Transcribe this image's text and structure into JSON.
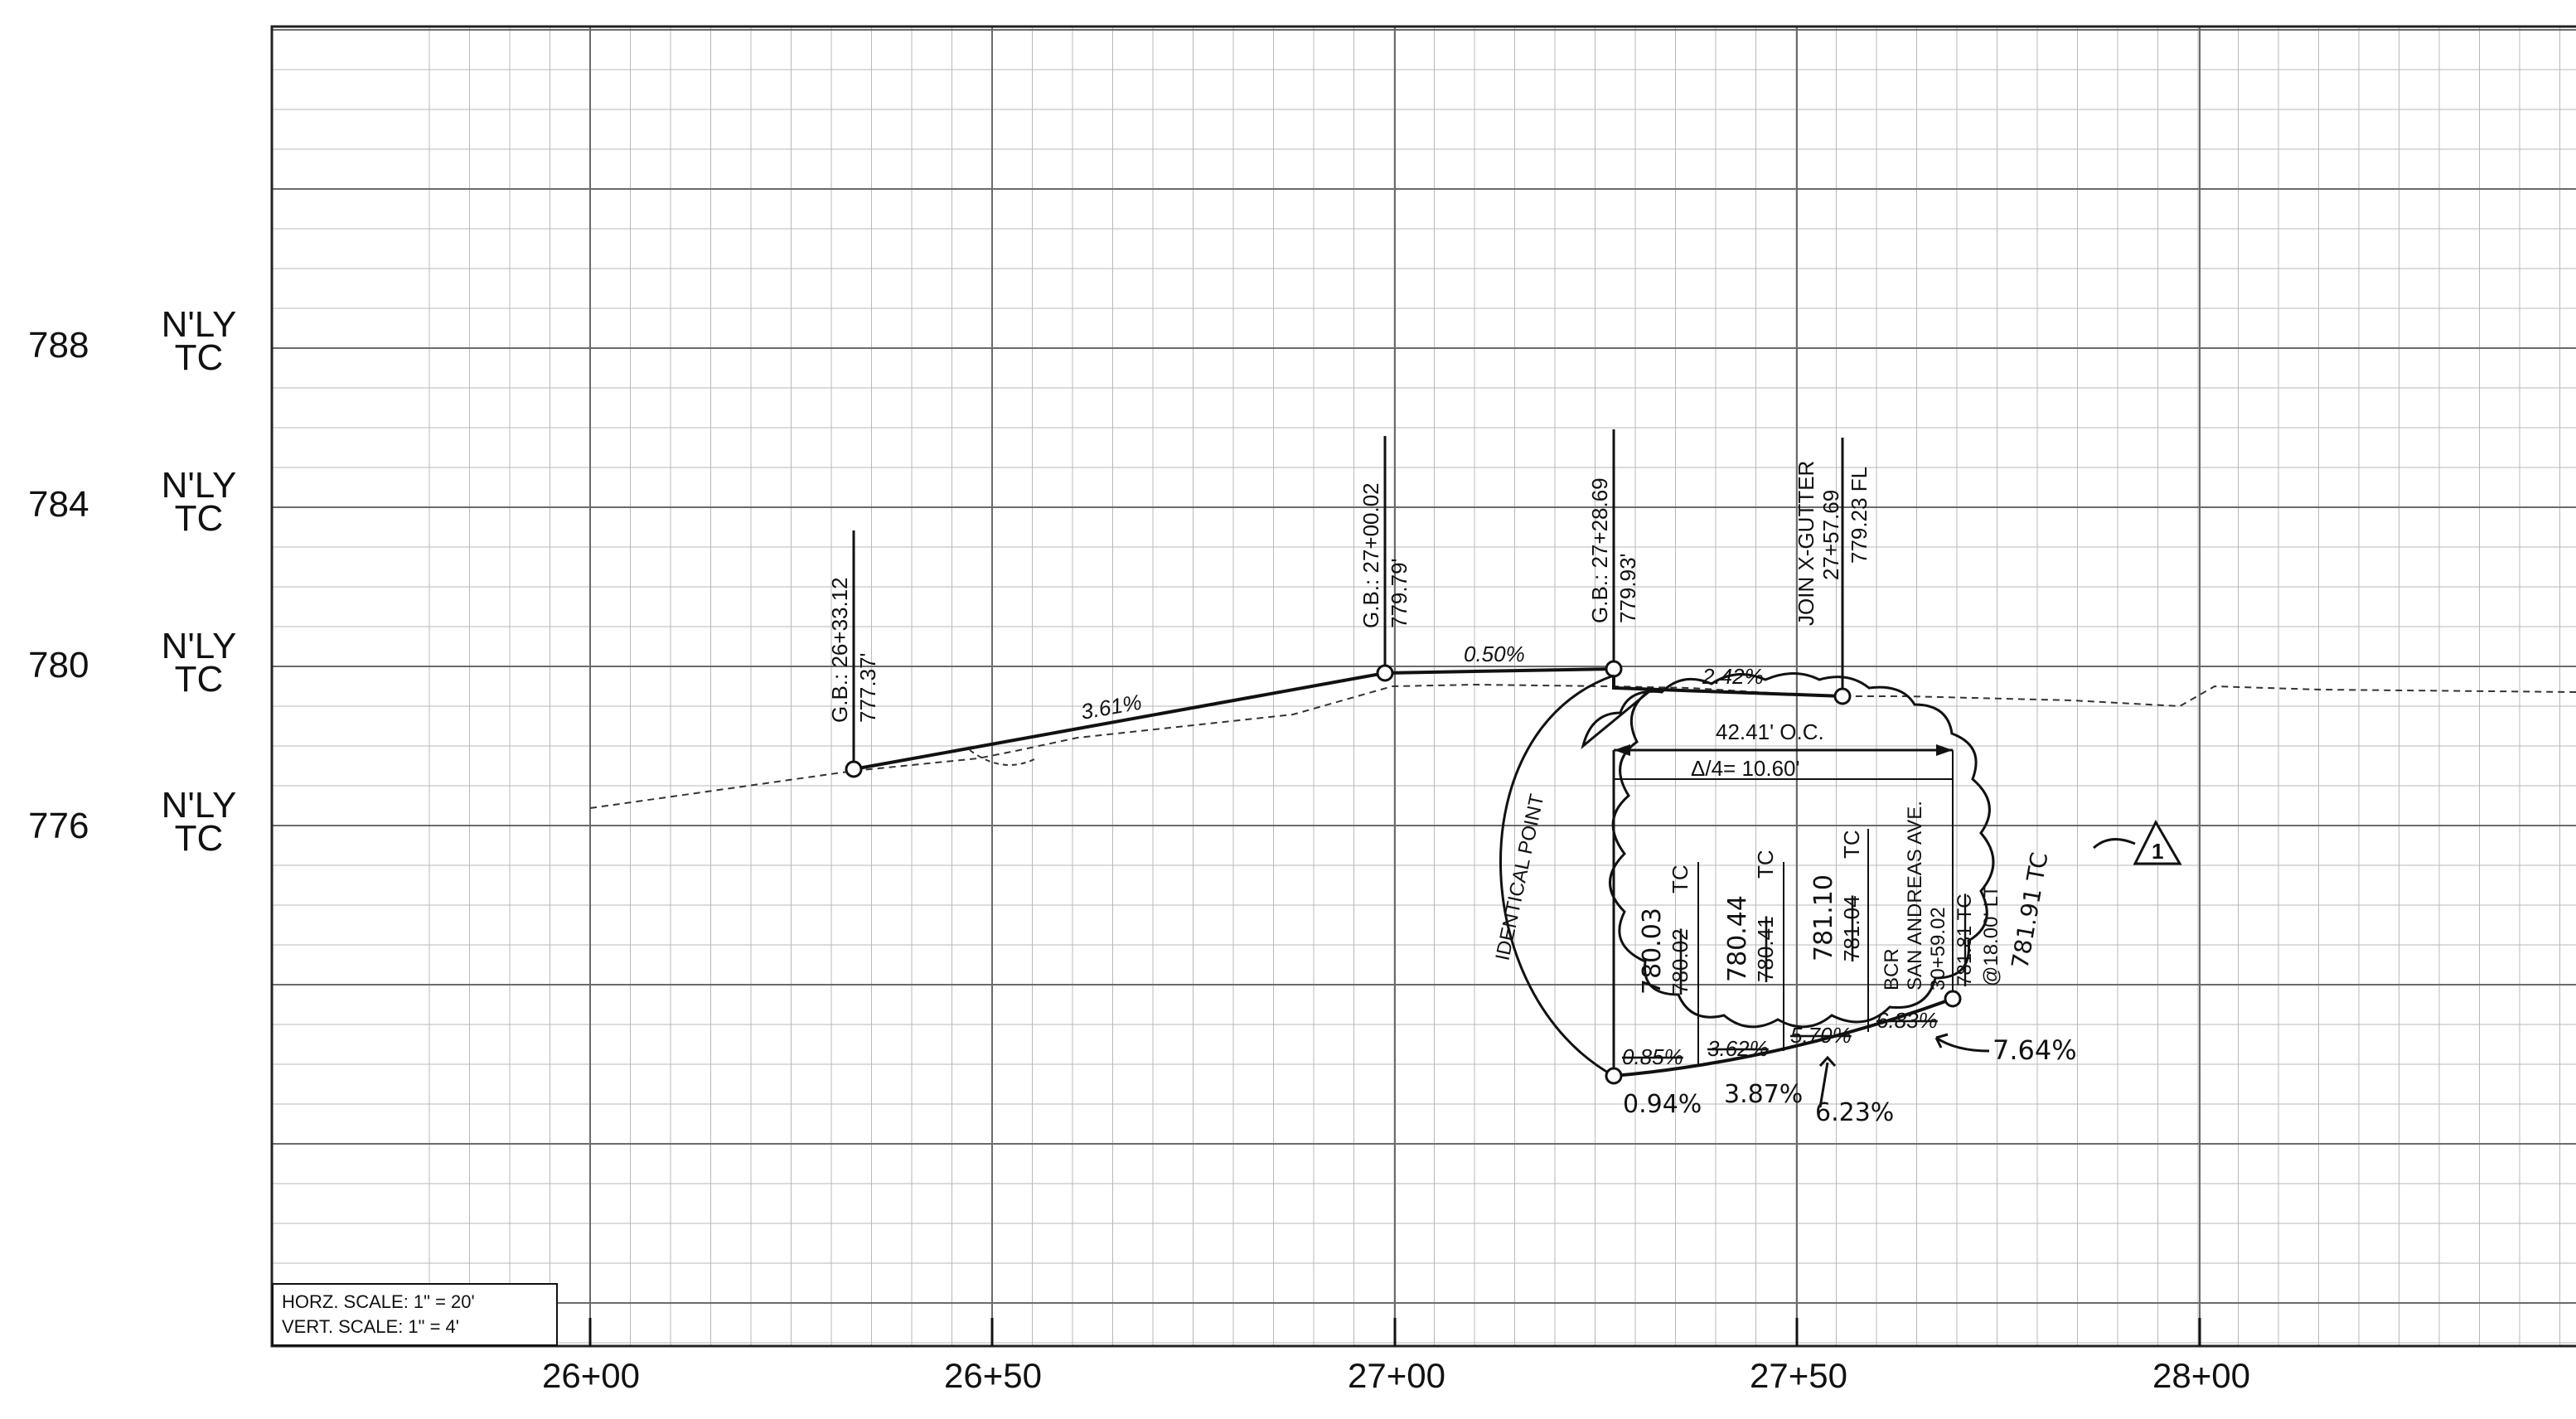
{
  "y_axis": {
    "ticks": [
      {
        "elev": "788",
        "label_top": "N'LY",
        "label_bottom": "TC"
      },
      {
        "elev": "784",
        "label_top": "N'LY",
        "label_bottom": "TC"
      },
      {
        "elev": "780",
        "label_top": "N'LY",
        "label_bottom": "TC"
      },
      {
        "elev": "776",
        "label_top": "N'LY",
        "label_bottom": "TC"
      }
    ]
  },
  "x_axis": {
    "ticks": [
      "26+00",
      "26+50",
      "27+00",
      "27+50",
      "28+00"
    ]
  },
  "scale_note": {
    "horizontal": "HORZ. SCALE: 1\" = 20'",
    "vertical": "VERT. SCALE: 1\" = 4'"
  },
  "grade_breaks": [
    {
      "title": "G.B.: 26+33.12",
      "elev": "777.37'"
    },
    {
      "title": "G.B.: 27+00.02",
      "elev": "779.79'"
    },
    {
      "title": "G.B.: 27+28.69",
      "elev": "779.93'"
    }
  ],
  "join_label": {
    "line1": "JOIN X-GUTTER",
    "line2": "27+57.69",
    "line3": "779.23 FL"
  },
  "slopes": {
    "s1": "3.61%",
    "s2": "0.50%",
    "s3": "2.42%"
  },
  "revision": {
    "dim_oc": "42.41' O.C.",
    "dim_delta": "Δ/4= 10.60'",
    "identical_point": "IDENTICAL POINT",
    "tc_points": [
      {
        "new": "780.03",
        "old": "780.02",
        "suffix": "TC"
      },
      {
        "new": "780.44",
        "old": "780.41",
        "suffix": "TC"
      },
      {
        "new": "781.10",
        "old": "781.04",
        "suffix": "TC"
      }
    ],
    "bcr": {
      "line1": "BCR",
      "line2": "SAN ANDREAS AVE.",
      "line3": "30+59.02",
      "line4": "781.81 TC",
      "line5": "@18.00' LT",
      "line6": "781.91 TC"
    },
    "old_slopes": [
      "0.85%",
      "3.62%",
      "5.70%",
      "6.83%"
    ],
    "new_slopes": [
      "0.94%",
      "3.87%",
      "6.23%",
      "7.64%"
    ],
    "delta_tag": "1"
  },
  "colors": {
    "line": "#111111",
    "grid_major": "#6b6b6b",
    "grid_minor": "#b8b8b8"
  }
}
